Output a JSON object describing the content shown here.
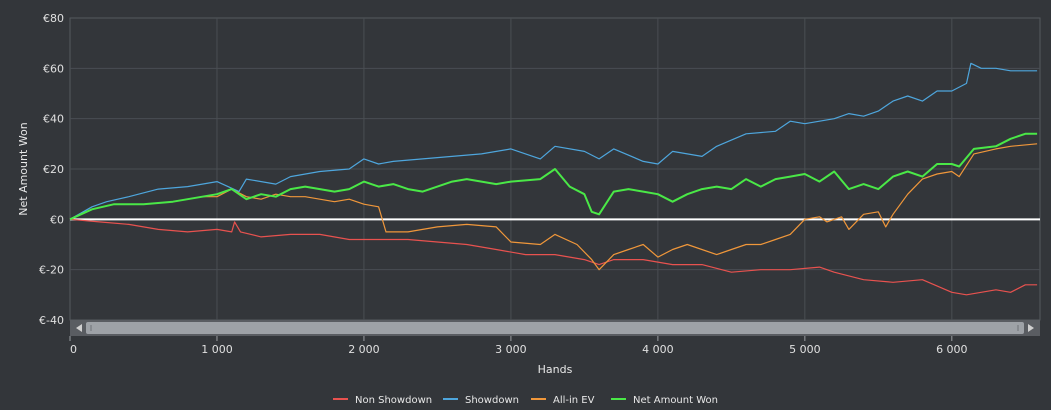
{
  "chart_data": {
    "type": "line",
    "title": "",
    "xlabel": "Hands",
    "ylabel": "Net Amount Won",
    "xlim": [
      0,
      6600
    ],
    "ylim": [
      -40,
      80
    ],
    "x_ticks": [
      {
        "value": 0,
        "label": "0"
      },
      {
        "value": 1000,
        "label": "1 000"
      },
      {
        "value": 2000,
        "label": "2 000"
      },
      {
        "value": 3000,
        "label": "3 000"
      },
      {
        "value": 4000,
        "label": "4 000"
      },
      {
        "value": 5000,
        "label": "5 000"
      },
      {
        "value": 6000,
        "label": "6 000"
      }
    ],
    "y_ticks": [
      {
        "value": 80,
        "label": "€80"
      },
      {
        "value": 60,
        "label": "€60"
      },
      {
        "value": 40,
        "label": "€40"
      },
      {
        "value": 20,
        "label": "€20"
      },
      {
        "value": 0,
        "label": "€0"
      },
      {
        "value": -20,
        "label": "€-20"
      },
      {
        "value": -40,
        "label": "€-40"
      }
    ],
    "grid": true,
    "legend_position": "bottom-center",
    "series": [
      {
        "name": "Non Showdown",
        "color": "#e8524f",
        "points": [
          [
            0,
            0
          ],
          [
            200,
            -1
          ],
          [
            400,
            -2
          ],
          [
            600,
            -4
          ],
          [
            800,
            -5
          ],
          [
            1000,
            -4
          ],
          [
            1100,
            -5
          ],
          [
            1120,
            -1
          ],
          [
            1160,
            -5
          ],
          [
            1300,
            -7
          ],
          [
            1500,
            -6
          ],
          [
            1700,
            -6
          ],
          [
            1900,
            -8
          ],
          [
            2100,
            -8
          ],
          [
            2300,
            -8
          ],
          [
            2500,
            -9
          ],
          [
            2700,
            -10
          ],
          [
            2900,
            -12
          ],
          [
            3100,
            -14
          ],
          [
            3300,
            -14
          ],
          [
            3500,
            -16
          ],
          [
            3600,
            -18
          ],
          [
            3700,
            -16
          ],
          [
            3900,
            -16
          ],
          [
            4100,
            -18
          ],
          [
            4300,
            -18
          ],
          [
            4500,
            -21
          ],
          [
            4700,
            -20
          ],
          [
            4900,
            -20
          ],
          [
            5100,
            -19
          ],
          [
            5200,
            -21
          ],
          [
            5400,
            -24
          ],
          [
            5600,
            -25
          ],
          [
            5800,
            -24
          ],
          [
            6000,
            -29
          ],
          [
            6100,
            -30
          ],
          [
            6200,
            -29
          ],
          [
            6300,
            -28
          ],
          [
            6400,
            -29
          ],
          [
            6500,
            -26
          ],
          [
            6580,
            -26
          ]
        ]
      },
      {
        "name": "Showdown",
        "color": "#4ea6dd",
        "points": [
          [
            0,
            0
          ],
          [
            150,
            5
          ],
          [
            250,
            7
          ],
          [
            400,
            9
          ],
          [
            600,
            12
          ],
          [
            800,
            13
          ],
          [
            1000,
            15
          ],
          [
            1150,
            11
          ],
          [
            1200,
            16
          ],
          [
            1400,
            14
          ],
          [
            1500,
            17
          ],
          [
            1700,
            19
          ],
          [
            1900,
            20
          ],
          [
            2000,
            24
          ],
          [
            2100,
            22
          ],
          [
            2200,
            23
          ],
          [
            2400,
            24
          ],
          [
            2600,
            25
          ],
          [
            2800,
            26
          ],
          [
            3000,
            28
          ],
          [
            3200,
            24
          ],
          [
            3300,
            29
          ],
          [
            3500,
            27
          ],
          [
            3600,
            24
          ],
          [
            3700,
            28
          ],
          [
            3900,
            23
          ],
          [
            4000,
            22
          ],
          [
            4100,
            27
          ],
          [
            4300,
            25
          ],
          [
            4400,
            29
          ],
          [
            4600,
            34
          ],
          [
            4800,
            35
          ],
          [
            4900,
            39
          ],
          [
            5000,
            38
          ],
          [
            5200,
            40
          ],
          [
            5300,
            42
          ],
          [
            5400,
            41
          ],
          [
            5500,
            43
          ],
          [
            5600,
            47
          ],
          [
            5700,
            49
          ],
          [
            5800,
            47
          ],
          [
            5900,
            51
          ],
          [
            6000,
            51
          ],
          [
            6100,
            54
          ],
          [
            6130,
            62
          ],
          [
            6200,
            60
          ],
          [
            6300,
            60
          ],
          [
            6400,
            59
          ],
          [
            6580,
            59
          ]
        ]
      },
      {
        "name": "All-in EV",
        "color": "#f0973a",
        "points": [
          [
            0,
            0
          ],
          [
            150,
            4
          ],
          [
            300,
            6
          ],
          [
            500,
            6
          ],
          [
            700,
            7
          ],
          [
            900,
            9
          ],
          [
            1000,
            9
          ],
          [
            1100,
            12
          ],
          [
            1200,
            9
          ],
          [
            1300,
            8
          ],
          [
            1400,
            10
          ],
          [
            1500,
            9
          ],
          [
            1600,
            9
          ],
          [
            1800,
            7
          ],
          [
            1900,
            8
          ],
          [
            2000,
            6
          ],
          [
            2100,
            5
          ],
          [
            2150,
            -5
          ],
          [
            2300,
            -5
          ],
          [
            2500,
            -3
          ],
          [
            2700,
            -2
          ],
          [
            2900,
            -3
          ],
          [
            3000,
            -9
          ],
          [
            3200,
            -10
          ],
          [
            3300,
            -6
          ],
          [
            3450,
            -10
          ],
          [
            3550,
            -16
          ],
          [
            3600,
            -20
          ],
          [
            3700,
            -14
          ],
          [
            3800,
            -12
          ],
          [
            3900,
            -10
          ],
          [
            4000,
            -15
          ],
          [
            4100,
            -12
          ],
          [
            4200,
            -10
          ],
          [
            4400,
            -14
          ],
          [
            4500,
            -12
          ],
          [
            4600,
            -10
          ],
          [
            4700,
            -10
          ],
          [
            4800,
            -8
          ],
          [
            4900,
            -6
          ],
          [
            5000,
            0
          ],
          [
            5100,
            1
          ],
          [
            5150,
            -1
          ],
          [
            5250,
            1
          ],
          [
            5300,
            -4
          ],
          [
            5400,
            2
          ],
          [
            5500,
            3
          ],
          [
            5550,
            -3
          ],
          [
            5600,
            2
          ],
          [
            5700,
            10
          ],
          [
            5800,
            16
          ],
          [
            5900,
            18
          ],
          [
            6000,
            19
          ],
          [
            6050,
            17
          ],
          [
            6150,
            26
          ],
          [
            6300,
            28
          ],
          [
            6400,
            29
          ],
          [
            6580,
            30
          ]
        ]
      },
      {
        "name": "Net Amount Won",
        "color": "#4ae847",
        "points": [
          [
            0,
            0
          ],
          [
            150,
            4
          ],
          [
            300,
            6
          ],
          [
            500,
            6
          ],
          [
            700,
            7
          ],
          [
            900,
            9
          ],
          [
            1000,
            10
          ],
          [
            1100,
            12
          ],
          [
            1200,
            8
          ],
          [
            1300,
            10
          ],
          [
            1400,
            9
          ],
          [
            1500,
            12
          ],
          [
            1600,
            13
          ],
          [
            1800,
            11
          ],
          [
            1900,
            12
          ],
          [
            2000,
            15
          ],
          [
            2100,
            13
          ],
          [
            2200,
            14
          ],
          [
            2300,
            12
          ],
          [
            2400,
            11
          ],
          [
            2600,
            15
          ],
          [
            2700,
            16
          ],
          [
            2900,
            14
          ],
          [
            3000,
            15
          ],
          [
            3200,
            16
          ],
          [
            3300,
            20
          ],
          [
            3400,
            13
          ],
          [
            3500,
            10
          ],
          [
            3550,
            3
          ],
          [
            3600,
            2
          ],
          [
            3700,
            11
          ],
          [
            3800,
            12
          ],
          [
            3900,
            11
          ],
          [
            4000,
            10
          ],
          [
            4100,
            7
          ],
          [
            4200,
            10
          ],
          [
            4300,
            12
          ],
          [
            4400,
            13
          ],
          [
            4500,
            12
          ],
          [
            4600,
            16
          ],
          [
            4700,
            13
          ],
          [
            4800,
            16
          ],
          [
            4900,
            17
          ],
          [
            5000,
            18
          ],
          [
            5100,
            15
          ],
          [
            5200,
            19
          ],
          [
            5300,
            12
          ],
          [
            5400,
            14
          ],
          [
            5500,
            12
          ],
          [
            5600,
            17
          ],
          [
            5700,
            19
          ],
          [
            5800,
            17
          ],
          [
            5900,
            22
          ],
          [
            6000,
            22
          ],
          [
            6050,
            21
          ],
          [
            6150,
            28
          ],
          [
            6300,
            29
          ],
          [
            6400,
            32
          ],
          [
            6500,
            34
          ],
          [
            6580,
            34
          ]
        ]
      }
    ]
  }
}
